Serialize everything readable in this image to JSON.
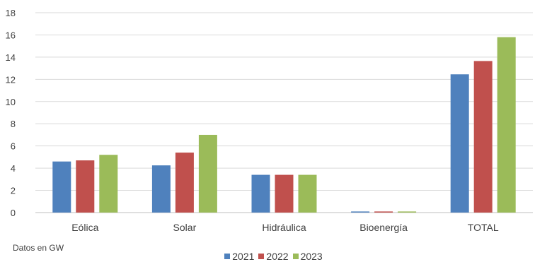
{
  "chart_data": {
    "type": "bar",
    "categories": [
      "Eólica",
      "Solar",
      "Hidráulica",
      "Bioenergía",
      "TOTAL"
    ],
    "series": [
      {
        "name": "2021",
        "color": "#4f81bd",
        "values": [
          4.6,
          4.25,
          3.4,
          0.1,
          12.45
        ]
      },
      {
        "name": "2022",
        "color": "#c0504d",
        "values": [
          4.7,
          5.4,
          3.4,
          0.1,
          13.65
        ]
      },
      {
        "name": "2023",
        "color": "#9bbb59",
        "values": [
          5.2,
          7.0,
          3.4,
          0.1,
          15.8
        ]
      }
    ],
    "ylim": [
      0,
      18
    ],
    "yticks": [
      0,
      2,
      4,
      6,
      8,
      10,
      12,
      14,
      16,
      18
    ],
    "grid": true,
    "legend_position": "bottom",
    "title": "",
    "xlabel": "",
    "ylabel": ""
  },
  "footnote": "Datos en GW"
}
